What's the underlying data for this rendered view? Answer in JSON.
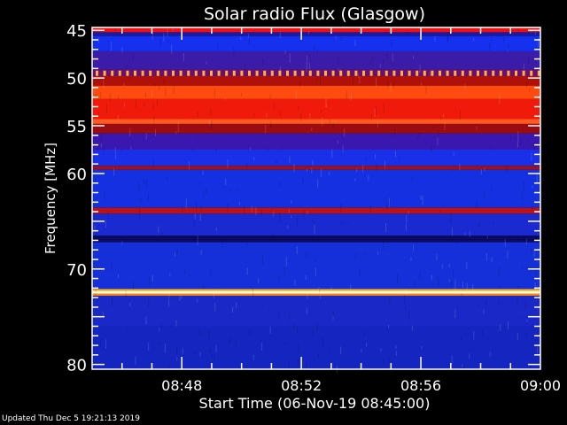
{
  "chart_data": {
    "type": "heatmap",
    "title": "Solar radio Flux (Glasgow)",
    "xlabel": "Start Time (06-Nov-19 08:45:00)",
    "ylabel": "Frequency [MHz]",
    "xlim": [
      "08:45",
      "09:00"
    ],
    "ylim": [
      80.5,
      44.7
    ],
    "x_ticks": [
      "08:48",
      "08:52",
      "08:56",
      "09:00"
    ],
    "y_ticks": [
      45,
      50,
      55,
      60,
      70,
      80
    ],
    "bands": [
      {
        "fmin": 44.7,
        "fmax": 45.2,
        "color": "#ee1010"
      },
      {
        "fmin": 45.2,
        "fmax": 45.6,
        "color": "#1a1aa0"
      },
      {
        "fmin": 45.6,
        "fmax": 47.2,
        "color": "#1530ee"
      },
      {
        "fmin": 47.2,
        "fmax": 49.1,
        "color": "#3a1ca8"
      },
      {
        "fmin": 49.1,
        "fmax": 49.8,
        "color": "#6a1070"
      },
      {
        "fmin": 49.8,
        "fmax": 50.8,
        "color": "#b0100a"
      },
      {
        "fmin": 50.8,
        "fmax": 52.2,
        "color": "#ff4a10"
      },
      {
        "fmin": 52.2,
        "fmax": 54.3,
        "color": "#f01a0a"
      },
      {
        "fmin": 54.3,
        "fmax": 54.8,
        "color": "#ff5a20"
      },
      {
        "fmin": 54.8,
        "fmax": 55.8,
        "color": "#9a0c10"
      },
      {
        "fmin": 55.8,
        "fmax": 57.5,
        "color": "#3a18b0"
      },
      {
        "fmin": 57.5,
        "fmax": 59.2,
        "color": "#1a30e8"
      },
      {
        "fmin": 59.2,
        "fmax": 59.6,
        "color": "#a01018"
      },
      {
        "fmin": 59.6,
        "fmax": 63.6,
        "color": "#1530e0"
      },
      {
        "fmin": 63.6,
        "fmax": 64.2,
        "color": "#c01010"
      },
      {
        "fmin": 64.2,
        "fmax": 66.5,
        "color": "#1a2ad0"
      },
      {
        "fmin": 66.5,
        "fmax": 67.2,
        "color": "#0a0a60"
      },
      {
        "fmin": 67.2,
        "fmax": 72.1,
        "color": "#1530d8"
      },
      {
        "fmin": 72.1,
        "fmax": 72.3,
        "color": "#ffb020"
      },
      {
        "fmin": 72.3,
        "fmax": 72.6,
        "color": "#ffffd0"
      },
      {
        "fmin": 72.6,
        "fmax": 72.8,
        "color": "#ff8010"
      },
      {
        "fmin": 72.8,
        "fmax": 76,
        "color": "#1a28c8"
      },
      {
        "fmin": 76,
        "fmax": 80.5,
        "color": "#1425c0"
      }
    ],
    "periodic_burst": {
      "freq": 49.5,
      "color": "#ffb040"
    }
  },
  "footer": {
    "updated": "Updated Thu Dec  5 19:21:13 2019"
  }
}
